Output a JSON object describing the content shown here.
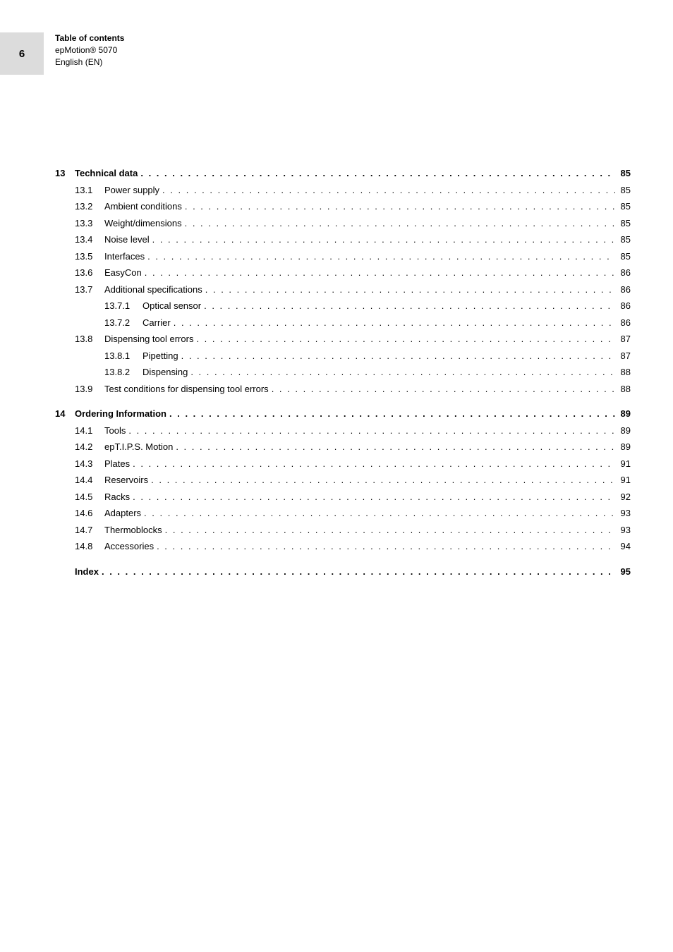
{
  "page_number": "6",
  "header": {
    "title": "Table of contents",
    "model": "epMotion® 5070",
    "lang": "English (EN)"
  },
  "toc": [
    {
      "level": 0,
      "num": "13",
      "title": "Technical data",
      "page": "85",
      "bold": true
    },
    {
      "level": 1,
      "num": "13.1",
      "title": "Power supply",
      "page": "85"
    },
    {
      "level": 1,
      "num": "13.2",
      "title": "Ambient conditions",
      "page": "85"
    },
    {
      "level": 1,
      "num": "13.3",
      "title": "Weight/dimensions",
      "page": "85"
    },
    {
      "level": 1,
      "num": "13.4",
      "title": "Noise level",
      "page": "85"
    },
    {
      "level": 1,
      "num": "13.5",
      "title": "Interfaces",
      "page": "85"
    },
    {
      "level": 1,
      "num": "13.6",
      "title": "EasyCon",
      "page": "86"
    },
    {
      "level": 1,
      "num": "13.7",
      "title": "Additional specifications",
      "page": "86"
    },
    {
      "level": 2,
      "num": "13.7.1",
      "title": "Optical sensor",
      "page": "86"
    },
    {
      "level": 2,
      "num": "13.7.2",
      "title": "Carrier",
      "page": "86"
    },
    {
      "level": 1,
      "num": "13.8",
      "title": "Dispensing tool errors",
      "page": "87"
    },
    {
      "level": 2,
      "num": "13.8.1",
      "title": "Pipetting",
      "page": "87"
    },
    {
      "level": 2,
      "num": "13.8.2",
      "title": "Dispensing",
      "page": "88"
    },
    {
      "level": 1,
      "num": "13.9",
      "title": "Test conditions for dispensing tool errors",
      "page": "88"
    },
    {
      "gap": true
    },
    {
      "level": 0,
      "num": "14",
      "title": "Ordering Information",
      "page": "89",
      "bold": true
    },
    {
      "level": 1,
      "num": "14.1",
      "title": "Tools",
      "page": "89"
    },
    {
      "level": 1,
      "num": "14.2",
      "title": "epT.I.P.S. Motion",
      "page": "89"
    },
    {
      "level": 1,
      "num": "14.3",
      "title": "Plates",
      "page": "91"
    },
    {
      "level": 1,
      "num": "14.4",
      "title": "Reservoirs",
      "page": "91"
    },
    {
      "level": 1,
      "num": "14.5",
      "title": "Racks",
      "page": "92"
    },
    {
      "level": 1,
      "num": "14.6",
      "title": "Adapters",
      "page": "93"
    },
    {
      "level": 1,
      "num": "14.7",
      "title": "Thermoblocks",
      "page": "93"
    },
    {
      "level": 1,
      "num": "14.8",
      "title": "Accessories",
      "page": "94"
    },
    {
      "gap": true
    },
    {
      "level": -1,
      "num": "",
      "title": "Index",
      "page": "95",
      "bold": true
    }
  ],
  "dots": ". . . . . . . . . . . . . . . . . . . . . . . . . . . . . . . . . . . . . . . . . . . . . . . . . . . . . . . . . . . . . . . . . . . . . . . . . . . . . . . . . . . . . . . . . . . . . . . . . . . . . . . . . . . . . . . . . . . . . . . . . . . . . . . . . . . . . . . . . . . . . . . . . . . . . . . . . . . . . . . . . . . . . . . . . ."
}
